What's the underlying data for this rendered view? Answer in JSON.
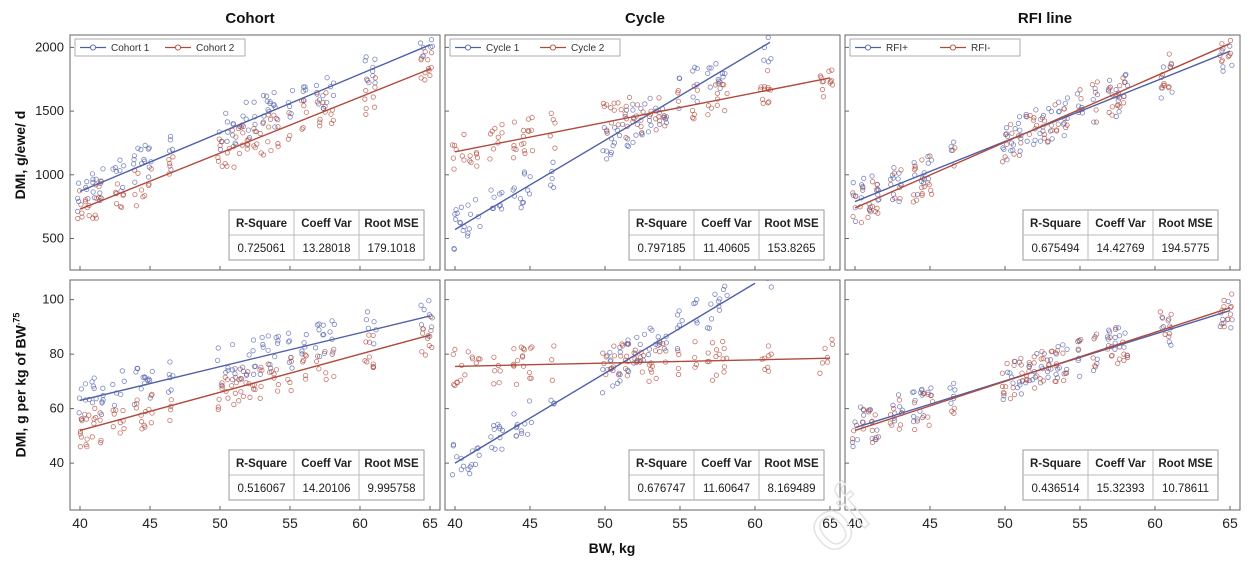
{
  "columns": [
    "Cohort",
    "Cycle",
    "RFI line"
  ],
  "ylabels": {
    "top": "DMI, g/ewe/ d",
    "bottom_main": "DMI, g per kg of BW",
    "bottom_sup": ".75"
  },
  "xlabel": "BW, kg",
  "colors": {
    "blue": "#5060a8",
    "red": "#b04a3c",
    "grid": "#dddddd",
    "axis": "#666666"
  },
  "stats_headers": [
    "R-Square",
    "Coeff Var",
    "Root MSE"
  ],
  "chart_data": [
    {
      "id": "cohort-top",
      "type": "scatter",
      "legend": "top-left",
      "xlim": [
        40,
        65
      ],
      "ylim": [
        300,
        2050
      ],
      "xticks": [
        40,
        45,
        50,
        55,
        60,
        65
      ],
      "yticks": [
        500,
        1000,
        1500,
        2000
      ],
      "series": [
        {
          "name": "Cohort 1",
          "color": "blue",
          "line": [
            [
              40,
              870
            ],
            [
              65,
              2020
            ]
          ]
        },
        {
          "name": "Cohort 2",
          "color": "red",
          "line": [
            [
              40,
              730
            ],
            [
              65,
              1830
            ]
          ]
        }
      ],
      "stats": [
        "0.725061",
        "13.28018",
        "179.1018"
      ]
    },
    {
      "id": "cycle-top",
      "type": "scatter",
      "legend": "top-left",
      "xlim": [
        40,
        65
      ],
      "ylim": [
        300,
        2050
      ],
      "xticks": [
        40,
        45,
        50,
        55,
        60,
        65
      ],
      "yticks": [
        500,
        1000,
        1500,
        2000
      ],
      "series": [
        {
          "name": "Cycle 1",
          "color": "blue",
          "line": [
            [
              40,
              570
            ],
            [
              61,
              2040
            ]
          ]
        },
        {
          "name": "Cycle 2",
          "color": "red",
          "line": [
            [
              40,
              1180
            ],
            [
              65,
              1760
            ]
          ]
        }
      ],
      "stats": [
        "0.797185",
        "11.40605",
        "153.8265"
      ]
    },
    {
      "id": "rfi-top",
      "type": "scatter",
      "legend": "top-left",
      "xlim": [
        40,
        65
      ],
      "ylim": [
        300,
        2050
      ],
      "xticks": [
        40,
        45,
        50,
        55,
        60,
        65
      ],
      "yticks": [
        500,
        1000,
        1500,
        2000
      ],
      "series": [
        {
          "name": "RFI+",
          "color": "blue",
          "line": [
            [
              40,
              790
            ],
            [
              65,
              1970
            ]
          ]
        },
        {
          "name": "RFI-",
          "color": "red",
          "line": [
            [
              40,
              740
            ],
            [
              65,
              2030
            ]
          ]
        }
      ],
      "stats": [
        "0.675494",
        "14.42769",
        "194.5775"
      ]
    },
    {
      "id": "cohort-bottom",
      "type": "scatter",
      "xlim": [
        40,
        65
      ],
      "ylim": [
        25,
        105
      ],
      "xticks": [
        40,
        45,
        50,
        55,
        60,
        65
      ],
      "yticks": [
        40,
        60,
        80,
        100
      ],
      "series": [
        {
          "color": "blue",
          "line": [
            [
              40,
              63
            ],
            [
              65,
              94
            ]
          ]
        },
        {
          "color": "red",
          "line": [
            [
              40,
              52
            ],
            [
              65,
              87
            ]
          ]
        }
      ],
      "stats": [
        "0.516067",
        "14.20106",
        "9.995758"
      ]
    },
    {
      "id": "cycle-bottom",
      "type": "scatter",
      "xlim": [
        40,
        65
      ],
      "ylim": [
        25,
        105
      ],
      "xticks": [
        40,
        45,
        50,
        55,
        60,
        65
      ],
      "yticks": [
        40,
        60,
        80,
        100
      ],
      "series": [
        {
          "color": "blue",
          "line": [
            [
              40,
              40
            ],
            [
              60,
              106
            ]
          ]
        },
        {
          "color": "red",
          "line": [
            [
              40,
              75.5
            ],
            [
              65,
              78.5
            ]
          ]
        }
      ],
      "stats": [
        "0.676747",
        "11.60647",
        "8.169489"
      ]
    },
    {
      "id": "rfi-bottom",
      "type": "scatter",
      "xlim": [
        40,
        65
      ],
      "ylim": [
        25,
        105
      ],
      "xticks": [
        40,
        45,
        50,
        55,
        60,
        65
      ],
      "yticks": [
        40,
        60,
        80,
        100
      ],
      "series": [
        {
          "color": "blue",
          "line": [
            [
              40,
              53
            ],
            [
              65,
              96
            ]
          ]
        },
        {
          "color": "red",
          "line": [
            [
              40,
              52
            ],
            [
              65,
              97
            ]
          ]
        }
      ],
      "stats": [
        "0.436514",
        "15.32393",
        "10.78611"
      ]
    }
  ]
}
